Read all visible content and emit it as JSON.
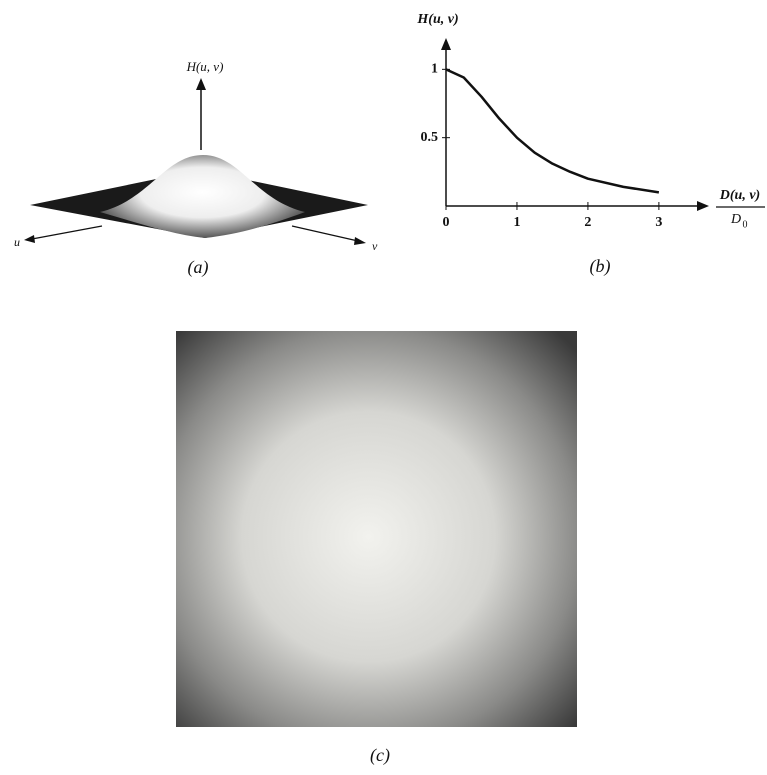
{
  "panel_a": {
    "z_label": "H(u, v)",
    "u_label": "u",
    "v_label": "v",
    "caption": "(a)"
  },
  "chart_data": {
    "type": "line",
    "y_label": "H(u, v)",
    "x_label": {
      "numerator": "D(u, v)",
      "denominator": {
        "base": "D",
        "subscript": "0"
      }
    },
    "x": [
      0,
      0.25,
      0.5,
      0.75,
      1,
      1.25,
      1.5,
      1.75,
      2,
      2.5,
      3
    ],
    "values": [
      1,
      0.94,
      0.8,
      0.64,
      0.5,
      0.39,
      0.31,
      0.25,
      0.2,
      0.14,
      0.1
    ],
    "color": "#111",
    "xlim": [
      0,
      3.65
    ],
    "ylim": [
      0,
      1.2
    ],
    "xticks": [
      0,
      1,
      2,
      3
    ],
    "yticks": [
      0.5,
      1
    ],
    "caption": "(b)"
  },
  "panel_c": {
    "caption": "(c)"
  }
}
